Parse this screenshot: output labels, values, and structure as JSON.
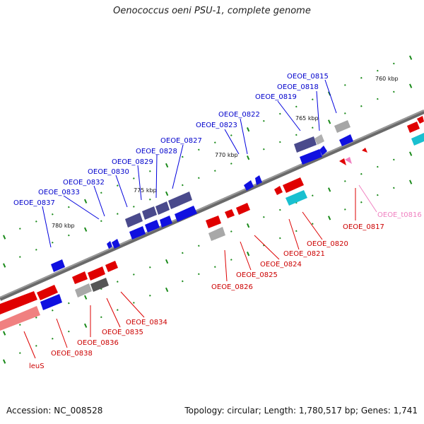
{
  "title": "Oenococcus oeni PSU-1, complete genome",
  "footer": {
    "accession": "Accession: NC_008528",
    "summary": "Topology: circular; Length: 1,780,517 bp; Genes: 1,741"
  },
  "colors": {
    "forward_gene": "#0000e0",
    "reverse_gene": "#e00000",
    "operon_highlight": "#4a4a8c",
    "pseudo_gene": "#a0a0a0",
    "rrna": "#19c0d0",
    "trna": "#f080c0",
    "backbone": "#777777",
    "tick": "#1a8a1a"
  },
  "kbp_ticks": [
    "760 kbp",
    "765 kbp",
    "770 kbp",
    "775 kbp",
    "780 kbp"
  ],
  "labels_top": [
    "OEOE_0815",
    "OEOE_0818",
    "OEOE_0819",
    "OEOE_0822",
    "OEOE_0823",
    "OEOE_0827",
    "OEOE_0828",
    "OEOE_0829",
    "OEOE_0830",
    "OEOE_0832",
    "OEOE_0833",
    "OEOE_0837"
  ],
  "labels_bottom": [
    "OEOE_0817",
    "OEOE_t0816",
    "OEOE_0820",
    "OEOE_0821",
    "OEOE_0824",
    "OEOE_0825",
    "OEOE_0826",
    "OEOE_0834",
    "OEOE_0835",
    "OEOE_0836",
    "OEOE_0838",
    "leuS"
  ]
}
